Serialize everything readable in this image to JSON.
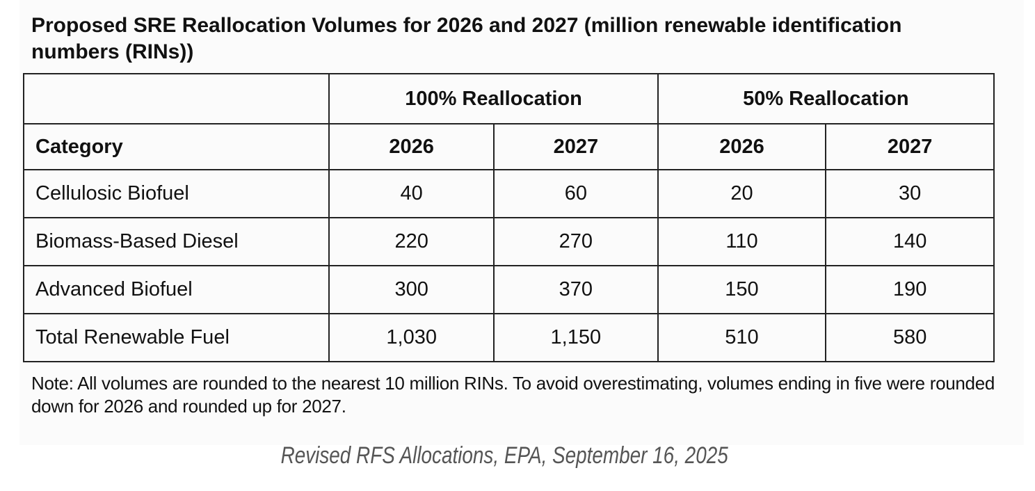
{
  "title": "Proposed SRE Reallocation Volumes for 2026 and 2027 (million renewable identification numbers (RINs))",
  "table": {
    "group_headers": [
      "100% Reallocation",
      "50% Reallocation"
    ],
    "columns": [
      "Category",
      "2026",
      "2027",
      "2026",
      "2027"
    ],
    "rows": [
      [
        "Cellulosic Biofuel",
        "40",
        "60",
        "20",
        "30"
      ],
      [
        "Biomass-Based Diesel",
        "220",
        "270",
        "110",
        "140"
      ],
      [
        "Advanced Biofuel",
        "300",
        "370",
        "150",
        "190"
      ],
      [
        "Total Renewable Fuel",
        "1,030",
        "1,150",
        "510",
        "580"
      ]
    ]
  },
  "note": "Note: All volumes are rounded to the nearest 10 million RINs. To avoid overestimating, volumes ending in five were rounded down for 2026 and rounded up for 2027.",
  "caption": "Revised RFS Allocations, EPA, September 16, 2025"
}
